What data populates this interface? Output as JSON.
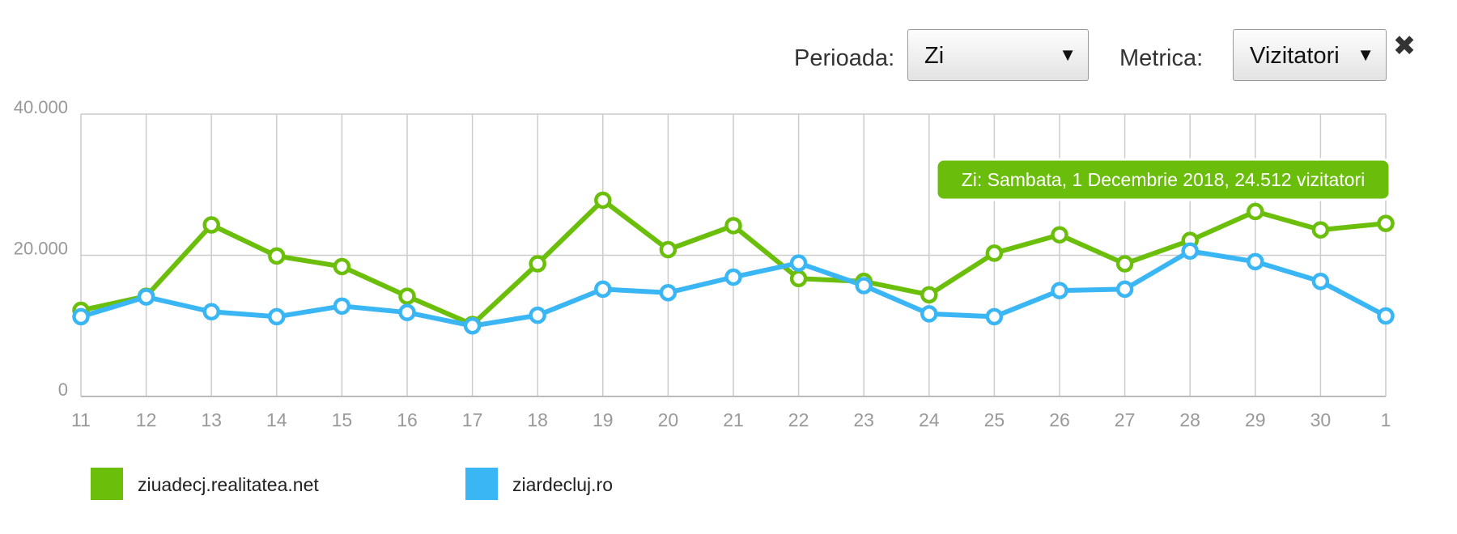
{
  "controls": {
    "period_label": "Perioada:",
    "period_value": "Zi",
    "metric_label": "Metrica:",
    "metric_value": "Vizitatori",
    "caret_icon": "triangle-down-icon",
    "close_icon": "close-icon"
  },
  "tooltip": {
    "text": "Zi: Sambata, 1 Decembrie 2018, 24.512 vizitatori",
    "color": "#6bbd0b"
  },
  "chart_data": {
    "type": "line",
    "categories": [
      "11",
      "12",
      "13",
      "14",
      "15",
      "16",
      "17",
      "18",
      "19",
      "20",
      "21",
      "22",
      "23",
      "24",
      "25",
      "26",
      "27",
      "28",
      "29",
      "30",
      "1"
    ],
    "y_ticks": [
      "40.000",
      "20.000",
      "0"
    ],
    "ylim": [
      0,
      40000
    ],
    "grid": true,
    "legend_position": "bottom-left",
    "series": [
      {
        "name": "ziuadecj.realitatea.net",
        "color": "#6bbf0b",
        "values": [
          12200,
          14200,
          24300,
          19900,
          18400,
          14200,
          10200,
          18800,
          27800,
          20800,
          24200,
          16700,
          16300,
          14400,
          20300,
          22900,
          18800,
          22100,
          26200,
          23600,
          24512
        ]
      },
      {
        "name": "ziardecluj.ro",
        "color": "#3bb6f4",
        "values": [
          11300,
          14100,
          12000,
          11300,
          12800,
          11900,
          10000,
          11500,
          15200,
          14700,
          16900,
          18900,
          15700,
          11700,
          11300,
          15000,
          15200,
          20600,
          19100,
          16300,
          11400
        ]
      }
    ]
  }
}
